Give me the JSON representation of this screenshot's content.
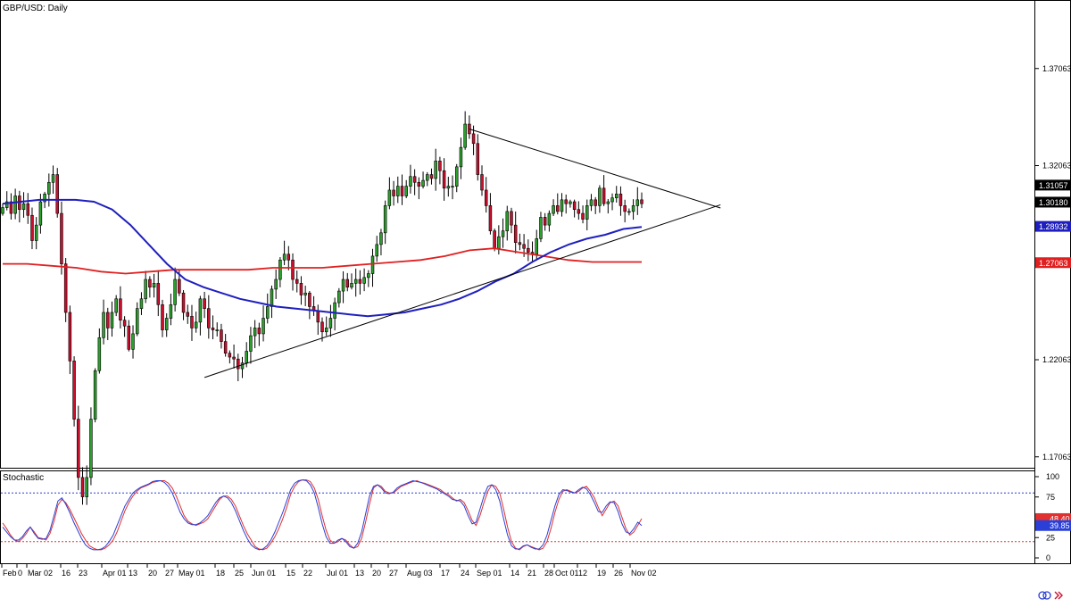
{
  "colors": {
    "bull": "#2ca02c",
    "bear": "#c8102e",
    "ma_fast": "#1f1fbf",
    "ma_slow": "#e02020",
    "stoch_k": "#e03030",
    "stoch_d": "#2a3fd6",
    "grid": "#b0b0b0",
    "level_upper": "#2a3fd6",
    "level_lower": "#e03030",
    "trendline": "#000000",
    "price_tag_current": "#000000",
    "price_tag_fast": "#1f1fbf",
    "price_tag_slow": "#e02020"
  },
  "main_panel": {
    "title": "GBP/USD: Daily"
  },
  "sub_panel": {
    "title": "Stochastic"
  },
  "icons": [
    "link-icon",
    "scroll-arrows-icon"
  ],
  "chart_data": [
    {
      "type": "candlestick",
      "title": "GBP/USD: Daily",
      "ylim": [
        1.165,
        1.405
      ],
      "y_ticks": [
        "1.37063",
        "1.32063",
        "1.22063",
        "1.17063"
      ],
      "x_tick_labels": [
        "Feb",
        "0",
        "Mar 02",
        "16",
        "23",
        "Apr 01",
        "13",
        "20",
        "27",
        "May 01",
        "18",
        "25",
        "Jun 01",
        "15",
        "22",
        "Jul 01",
        "13",
        "20",
        "27",
        "Aug 03",
        "17",
        "24",
        "Sep 01",
        "14",
        "21",
        "28",
        "Oct 01",
        "12",
        "19",
        "26",
        "Nov 02"
      ],
      "price_tags": [
        {
          "label": "1.31057",
          "value": 1.31057,
          "kind": "current"
        },
        {
          "label": "1.30180",
          "value": 1.3018,
          "kind": "current"
        },
        {
          "label": "1.28932",
          "value": 1.28932,
          "kind": "ma_fast"
        },
        {
          "label": "1.27063",
          "value": 1.27063,
          "kind": "ma_slow"
        }
      ],
      "close_series": [
        1.299,
        1.302,
        1.296,
        1.305,
        1.298,
        1.301,
        1.295,
        1.282,
        1.29,
        1.302,
        1.306,
        1.312,
        1.316,
        1.296,
        1.27,
        1.245,
        1.22,
        1.19,
        1.16,
        1.15,
        1.16,
        1.19,
        1.215,
        1.232,
        1.245,
        1.237,
        1.245,
        1.252,
        1.241,
        1.238,
        1.226,
        1.234,
        1.247,
        1.252,
        1.262,
        1.258,
        1.26,
        1.249,
        1.236,
        1.242,
        1.249,
        1.262,
        1.255,
        1.245,
        1.243,
        1.237,
        1.24,
        1.252,
        1.247,
        1.237,
        1.236,
        1.236,
        1.23,
        1.224,
        1.222,
        1.221,
        1.216,
        1.219,
        1.225,
        1.233,
        1.237,
        1.234,
        1.242,
        1.248,
        1.257,
        1.262,
        1.272,
        1.275,
        1.272,
        1.262,
        1.26,
        1.254,
        1.255,
        1.248,
        1.246,
        1.24,
        1.235,
        1.237,
        1.242,
        1.25,
        1.256,
        1.262,
        1.258,
        1.26,
        1.262,
        1.26,
        1.263,
        1.265,
        1.274,
        1.28,
        1.286,
        1.3,
        1.308,
        1.305,
        1.31,
        1.305,
        1.31,
        1.315,
        1.312,
        1.31,
        1.313,
        1.316,
        1.314,
        1.323,
        1.318,
        1.309,
        1.31,
        1.31,
        1.32,
        1.33,
        1.342,
        1.337,
        1.332,
        1.316,
        1.308,
        1.3,
        1.287,
        1.278,
        1.284,
        1.287,
        1.297,
        1.29,
        1.281,
        1.28,
        1.278,
        1.276,
        1.275,
        1.283,
        1.294,
        1.29,
        1.296,
        1.3,
        1.297,
        1.303,
        1.301,
        1.302,
        1.298,
        1.296,
        1.293,
        1.3,
        1.303,
        1.3,
        1.309,
        1.301,
        1.302,
        1.304,
        1.306,
        1.3,
        1.297,
        1.297,
        1.3,
        1.303,
        1.301
      ],
      "ma_fast_series": [
        1.301,
        1.302,
        1.303,
        1.303,
        1.303,
        1.302,
        1.298,
        1.29,
        1.28,
        1.27,
        1.262,
        1.258,
        1.255,
        1.252,
        1.25,
        1.248,
        1.247,
        1.246,
        1.245,
        1.244,
        1.243,
        1.244,
        1.245,
        1.247,
        1.249,
        1.252,
        1.256,
        1.261,
        1.265,
        1.271,
        1.276,
        1.28,
        1.283,
        1.285,
        1.288,
        1.289
      ],
      "ma_slow_series": [
        1.27,
        1.27,
        1.269,
        1.268,
        1.266,
        1.265,
        1.266,
        1.267,
        1.267,
        1.267,
        1.267,
        1.268,
        1.268,
        1.268,
        1.269,
        1.27,
        1.271,
        1.272,
        1.274,
        1.277,
        1.278,
        1.276,
        1.274,
        1.272,
        1.271,
        1.271,
        1.271
      ],
      "trendlines": [
        {
          "name": "upper",
          "from": [
            111,
            1.3395
          ],
          "to": [
            158,
            1.2995
          ]
        },
        {
          "name": "lower",
          "from": [
            48,
            1.2115
          ],
          "to": [
            158,
            1.2995
          ]
        }
      ]
    },
    {
      "type": "line",
      "title": "Stochastic",
      "ylim": [
        0,
        100
      ],
      "y_ticks": [
        "100",
        "75",
        "25",
        "0"
      ],
      "levels": [
        80,
        20
      ],
      "value_tags": [
        {
          "label": "48.40",
          "value": 48.4,
          "kind": "k"
        },
        {
          "label": "39.85",
          "value": 39.85,
          "kind": "d"
        }
      ],
      "series": [
        {
          "values": [
            43,
            36,
            28,
            22,
            20,
            24,
            30,
            38,
            32,
            25,
            24,
            22,
            30,
            45,
            65,
            72,
            68,
            60,
            50,
            40,
            30,
            22,
            15,
            12,
            10,
            10,
            12,
            16,
            22,
            32,
            45,
            58,
            68,
            76,
            82,
            86,
            88,
            90,
            93,
            94,
            95,
            95,
            92,
            86,
            76,
            64,
            52,
            45,
            42,
            40,
            42,
            44,
            48,
            56,
            64,
            72,
            76,
            76,
            72,
            64,
            52,
            40,
            30,
            22,
            14,
            11,
            10,
            12,
            18,
            26,
            36,
            48,
            62,
            78,
            88,
            94,
            96,
            96,
            94,
            86,
            72,
            52,
            34,
            22,
            18,
            20,
            24,
            22,
            16,
            12,
            14,
            24,
            44,
            66,
            86,
            90,
            88,
            82,
            80,
            80,
            84,
            88,
            90,
            92,
            94,
            95,
            93,
            92,
            90,
            88,
            86,
            84,
            80,
            78,
            74,
            70,
            72,
            68,
            58,
            46,
            40,
            52,
            68,
            82,
            90,
            88,
            80,
            60,
            38,
            20,
            12,
            10,
            14,
            16,
            14,
            12,
            10,
            12,
            20,
            36,
            56,
            72,
            82,
            84,
            82,
            80,
            82,
            86,
            88,
            82,
            74,
            62,
            52,
            60,
            68,
            70,
            64,
            50,
            36,
            28,
            32,
            40,
            48.4
          ]
        },
        {
          "values": [
            38,
            32,
            26,
            22,
            22,
            26,
            33,
            38,
            30,
            24,
            23,
            24,
            34,
            52,
            70,
            74,
            66,
            56,
            44,
            34,
            24,
            16,
            12,
            10,
            10,
            11,
            14,
            20,
            28,
            40,
            52,
            64,
            72,
            80,
            84,
            87,
            89,
            91,
            94,
            95,
            95,
            93,
            88,
            80,
            68,
            56,
            48,
            43,
            41,
            41,
            43,
            47,
            52,
            60,
            68,
            74,
            76,
            74,
            68,
            58,
            46,
            34,
            24,
            16,
            12,
            10,
            11,
            15,
            22,
            32,
            44,
            56,
            70,
            84,
            92,
            95,
            96,
            95,
            90,
            80,
            62,
            42,
            26,
            18,
            18,
            22,
            24,
            20,
            14,
            12,
            18,
            32,
            54,
            76,
            88,
            90,
            86,
            80,
            79,
            81,
            86,
            89,
            91,
            93,
            95,
            94,
            93,
            91,
            89,
            87,
            85,
            82,
            79,
            76,
            72,
            71,
            70,
            64,
            52,
            42,
            44,
            60,
            76,
            88,
            90,
            84,
            70,
            48,
            28,
            15,
            11,
            11,
            15,
            16,
            13,
            11,
            11,
            16,
            28,
            46,
            64,
            78,
            84,
            83,
            81,
            80,
            84,
            87,
            85,
            78,
            68,
            57,
            56,
            64,
            69,
            68,
            57,
            42,
            32,
            30,
            36,
            44,
            39.85
          ]
        }
      ]
    }
  ]
}
